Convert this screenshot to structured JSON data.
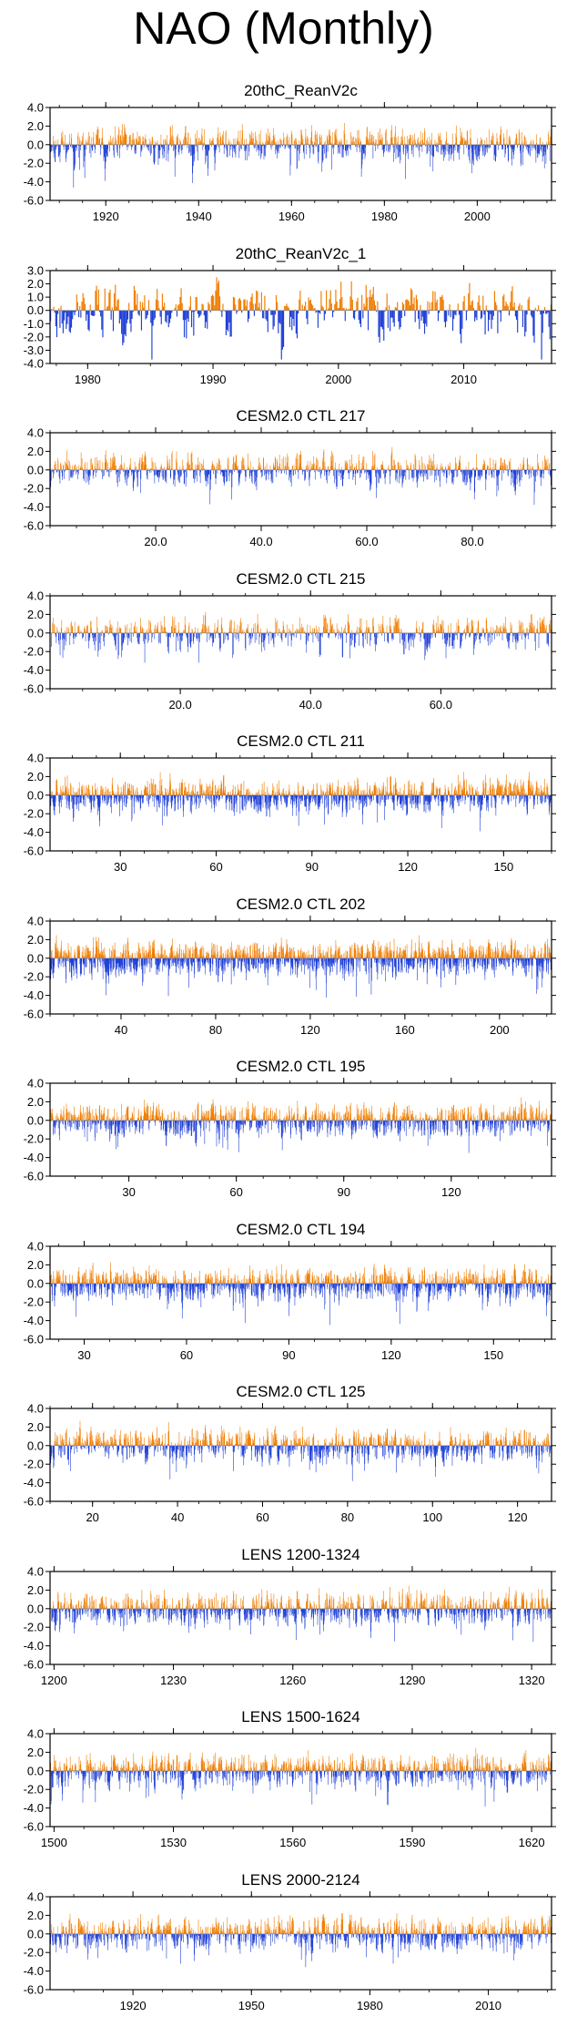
{
  "title": "NAO (Monthly)",
  "colors": {
    "positive": "#f07d00",
    "negative": "#1f3fd6",
    "zero": "#888888",
    "frame": "#000000"
  },
  "chart_data": [
    {
      "type": "bar",
      "title": "20thC_ReanV2c",
      "xlim": [
        1908,
        2016
      ],
      "ylim": [
        -6,
        4
      ],
      "yticks": [
        4,
        2,
        0,
        -2,
        -4,
        -6
      ],
      "ytick_labels": [
        "4.0",
        "2.0",
        "0.0",
        "-2.0",
        "-4.0",
        "-6.0"
      ],
      "xticks": [
        1920,
        1940,
        1960,
        1980,
        2000
      ],
      "xtick_labels": [
        "1920",
        "1940",
        "1960",
        "1980",
        "2000"
      ],
      "n_points": 1296,
      "amplitude": 1.0,
      "seed": 11
    },
    {
      "type": "bar",
      "title": "20thC_ReanV2c_1",
      "xlim": [
        1977,
        2017
      ],
      "ylim": [
        -4,
        3
      ],
      "yticks": [
        3,
        2,
        1,
        0,
        -1,
        -2,
        -3,
        -4
      ],
      "ytick_labels": [
        "3.0",
        "2.0",
        "1.0",
        "0.0",
        "-1.0",
        "-2.0",
        "-3.0",
        "-4.0"
      ],
      "xticks": [
        1980,
        1990,
        2000,
        2010
      ],
      "xtick_labels": [
        "1980",
        "1990",
        "2000",
        "2010"
      ],
      "n_points": 480,
      "amplitude": 1.1,
      "seed": 23
    },
    {
      "type": "bar",
      "title": "CESM2.0 CTL 217",
      "xlim": [
        0,
        95
      ],
      "ylim": [
        -6,
        4
      ],
      "yticks": [
        4,
        2,
        0,
        -2,
        -4,
        -6
      ],
      "ytick_labels": [
        "4.0",
        "2.0",
        "0.0",
        "-2.0",
        "-4.0",
        "-6.0"
      ],
      "xticks": [
        20,
        40,
        60,
        80
      ],
      "xtick_labels": [
        "20.0",
        "40.0",
        "60.0",
        "80.0"
      ],
      "n_points": 1140,
      "amplitude": 1.0,
      "seed": 37
    },
    {
      "type": "bar",
      "title": "CESM2.0 CTL 215",
      "xlim": [
        0,
        77
      ],
      "ylim": [
        -6,
        4
      ],
      "yticks": [
        4,
        2,
        0,
        -2,
        -4,
        -6
      ],
      "ytick_labels": [
        "4.0",
        "2.0",
        "0.0",
        "-2.0",
        "-4.0",
        "-6.0"
      ],
      "xticks": [
        20,
        40,
        60
      ],
      "xtick_labels": [
        "20.0",
        "40.0",
        "60.0"
      ],
      "n_points": 924,
      "amplitude": 1.0,
      "seed": 41
    },
    {
      "type": "bar",
      "title": "CESM2.0 CTL 211",
      "xlim": [
        8,
        165
      ],
      "ylim": [
        -6,
        4
      ],
      "yticks": [
        4,
        2,
        0,
        -2,
        -4,
        -6
      ],
      "ytick_labels": [
        "4.0",
        "2.0",
        "0.0",
        "-2.0",
        "-4.0",
        "-6.0"
      ],
      "xticks": [
        30,
        60,
        90,
        120,
        150
      ],
      "xtick_labels": [
        "30",
        "60",
        "90",
        "120",
        "150"
      ],
      "n_points": 1884,
      "amplitude": 1.0,
      "seed": 53
    },
    {
      "type": "bar",
      "title": "CESM2.0 CTL 202",
      "xlim": [
        10,
        222
      ],
      "ylim": [
        -6,
        4
      ],
      "yticks": [
        4,
        2,
        0,
        -2,
        -4,
        -6
      ],
      "ytick_labels": [
        "4.0",
        "2.0",
        "0.0",
        "-2.0",
        "-4.0",
        "-6.0"
      ],
      "xticks": [
        40,
        80,
        120,
        160,
        200
      ],
      "xtick_labels": [
        "40",
        "80",
        "120",
        "160",
        "200"
      ],
      "n_points": 2544,
      "amplitude": 1.0,
      "seed": 67
    },
    {
      "type": "bar",
      "title": "CESM2.0 CTL 195",
      "xlim": [
        8,
        148
      ],
      "ylim": [
        -6,
        4
      ],
      "yticks": [
        4,
        2,
        0,
        -2,
        -4,
        -6
      ],
      "ytick_labels": [
        "4.0",
        "2.0",
        "0.0",
        "-2.0",
        "-4.0",
        "-6.0"
      ],
      "xticks": [
        30,
        60,
        90,
        120
      ],
      "xtick_labels": [
        "30",
        "60",
        "90",
        "120"
      ],
      "n_points": 1680,
      "amplitude": 1.0,
      "seed": 71
    },
    {
      "type": "bar",
      "title": "CESM2.0 CTL 194",
      "xlim": [
        20,
        167
      ],
      "ylim": [
        -6,
        4
      ],
      "yticks": [
        4,
        2,
        0,
        -2,
        -4,
        -6
      ],
      "ytick_labels": [
        "4.0",
        "2.0",
        "0.0",
        "-2.0",
        "-4.0",
        "-6.0"
      ],
      "xticks": [
        30,
        60,
        90,
        120,
        150
      ],
      "xtick_labels": [
        "30",
        "60",
        "90",
        "120",
        "150"
      ],
      "n_points": 1764,
      "amplitude": 1.0,
      "seed": 83
    },
    {
      "type": "bar",
      "title": "CESM2.0 CTL 125",
      "xlim": [
        10,
        128
      ],
      "ylim": [
        -6,
        4
      ],
      "yticks": [
        4,
        2,
        0,
        -2,
        -4,
        -6
      ],
      "ytick_labels": [
        "4.0",
        "2.0",
        "0.0",
        "-2.0",
        "-4.0",
        "-6.0"
      ],
      "xticks": [
        20,
        40,
        60,
        80,
        100,
        120
      ],
      "xtick_labels": [
        "20",
        "40",
        "60",
        "80",
        "100",
        "120"
      ],
      "n_points": 1416,
      "amplitude": 1.0,
      "seed": 97
    },
    {
      "type": "bar",
      "title": "LENS 1200-1324",
      "xlim": [
        1199,
        1325
      ],
      "ylim": [
        -6,
        4
      ],
      "yticks": [
        4,
        2,
        0,
        -2,
        -4,
        -6
      ],
      "ytick_labels": [
        "4.0",
        "2.0",
        "0.0",
        "-2.0",
        "-4.0",
        "-6.0"
      ],
      "xticks": [
        1200,
        1230,
        1260,
        1290,
        1320
      ],
      "xtick_labels": [
        "1200",
        "1230",
        "1260",
        "1290",
        "1320"
      ],
      "n_points": 1512,
      "amplitude": 1.0,
      "seed": 101
    },
    {
      "type": "bar",
      "title": "LENS 1500-1624",
      "xlim": [
        1499,
        1625
      ],
      "ylim": [
        -6,
        4
      ],
      "yticks": [
        4,
        2,
        0,
        -2,
        -4,
        -6
      ],
      "ytick_labels": [
        "4.0",
        "2.0",
        "0.0",
        "-2.0",
        "-4.0",
        "-6.0"
      ],
      "xticks": [
        1500,
        1530,
        1560,
        1590,
        1620
      ],
      "xtick_labels": [
        "1500",
        "1530",
        "1560",
        "1590",
        "1620"
      ],
      "n_points": 1512,
      "amplitude": 1.0,
      "seed": 113
    },
    {
      "type": "bar",
      "title": "LENS 2000-2124",
      "xlim": [
        1899,
        2026
      ],
      "ylim": [
        -6,
        4
      ],
      "yticks": [
        4,
        2,
        0,
        -2,
        -4,
        -6
      ],
      "ytick_labels": [
        "4.0",
        "2.0",
        "0.0",
        "-2.0",
        "-4.0",
        "-6.0"
      ],
      "xticks": [
        1920,
        1950,
        1980,
        2010
      ],
      "xtick_labels": [
        "1920",
        "1950",
        "1980",
        "2010"
      ],
      "n_points": 1524,
      "amplitude": 1.0,
      "seed": 127
    }
  ]
}
